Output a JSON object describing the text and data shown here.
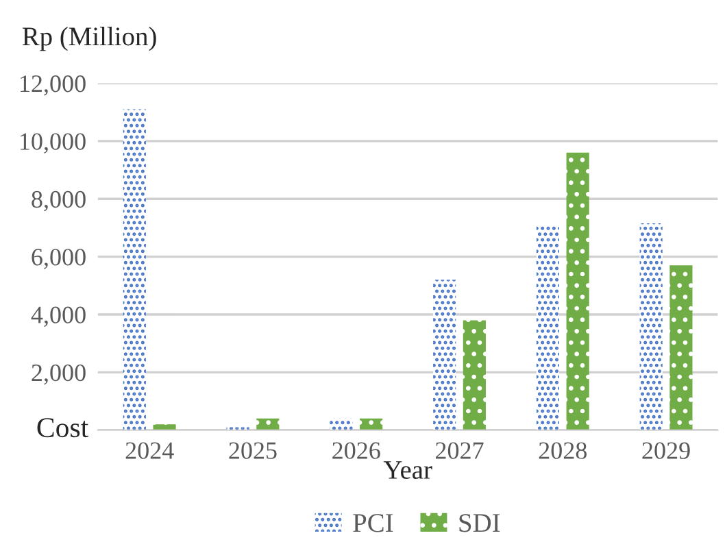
{
  "chart_data": {
    "type": "bar",
    "title": "Rp (Million)",
    "xlabel": "Year",
    "ylabel": "Cost",
    "categories": [
      "2024",
      "2025",
      "2026",
      "2027",
      "2028",
      "2029"
    ],
    "series": [
      {
        "name": "PCI",
        "color": "#4472c4",
        "values": [
          11100,
          100,
          400,
          5200,
          7100,
          7150
        ]
      },
      {
        "name": "SDI",
        "color": "#70ad47",
        "values": [
          200,
          400,
          400,
          3800,
          9600,
          5700
        ]
      }
    ],
    "ylim": [
      0,
      12000
    ],
    "yticks": [
      {
        "value": 0,
        "label": null
      },
      {
        "value": 2000,
        "label": "2,000"
      },
      {
        "value": 4000,
        "label": "4,000"
      },
      {
        "value": 6000,
        "label": "6,000"
      },
      {
        "value": 8000,
        "label": "8,000"
      },
      {
        "value": 10000,
        "label": "10,000"
      },
      {
        "value": 12000,
        "label": "12,000"
      }
    ],
    "grid": "y",
    "legend": "bottom"
  }
}
